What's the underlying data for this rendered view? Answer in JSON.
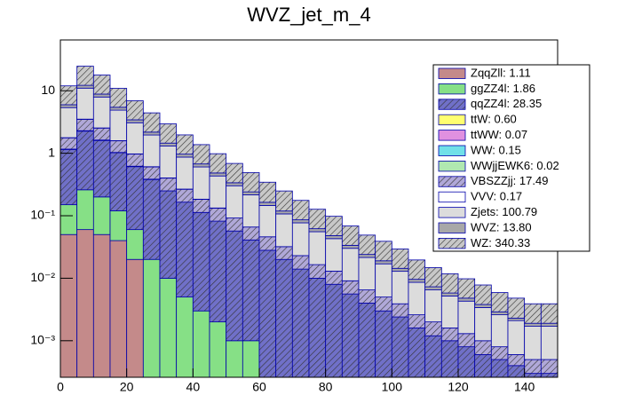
{
  "chart_data": {
    "type": "stacked_histogram",
    "title": "WVZ_jet_m_4",
    "log_y": true,
    "xlim": [
      0,
      150
    ],
    "xticks": [
      0,
      20,
      40,
      60,
      80,
      100,
      120,
      140
    ],
    "ylim": [
      0.00026,
      65
    ],
    "yticks": [
      {
        "value": 0.001,
        "label": "10⁻³"
      },
      {
        "value": 0.01,
        "label": "10⁻²"
      },
      {
        "value": 0.1,
        "label": "10⁻¹"
      },
      1,
      10
    ],
    "bins": [
      0,
      5,
      10,
      15,
      20,
      25,
      30,
      35,
      40,
      45,
      50,
      55,
      60,
      65,
      70,
      75,
      80,
      85,
      90,
      95,
      100,
      105,
      110,
      115,
      120,
      125,
      130,
      135,
      140,
      145,
      150
    ],
    "series": [
      {
        "name": "ZqqZll: 1.11",
        "color": "#c48a8a",
        "hatch": false,
        "values": [
          0.05,
          0.06,
          0.05,
          0.04,
          0.02,
          0,
          0,
          0,
          0,
          0,
          0,
          0,
          0,
          0,
          0,
          0,
          0,
          0,
          0,
          0,
          0,
          0,
          0,
          0,
          0,
          0,
          0,
          0,
          0,
          0
        ]
      },
      {
        "name": "ggZZ4l: 1.86",
        "color": "#86e086",
        "hatch": false,
        "values": [
          0.1,
          0.2,
          0.15,
          0.08,
          0.04,
          0.02,
          0.01,
          0.005,
          0.003,
          0.002,
          0.001,
          0.001,
          0,
          0,
          0,
          0,
          0,
          0,
          0,
          0,
          0,
          0,
          0,
          0,
          0,
          0,
          0,
          0,
          0,
          0
        ]
      },
      {
        "name": "qqZZ4l: 28.35",
        "color": "#7070c8",
        "hatch": true,
        "values": [
          1.0,
          2.0,
          1.4,
          0.9,
          0.55,
          0.36,
          0.24,
          0.16,
          0.11,
          0.08,
          0.056,
          0.04,
          0.028,
          0.02,
          0.014,
          0.01,
          0.008,
          0.0056,
          0.004,
          0.003,
          0.0024,
          0.0016,
          0.0012,
          0.001,
          0.0008,
          0.0006,
          0.0005,
          0.0004,
          0.0003,
          0.0003
        ]
      },
      {
        "name": "ttW: 0.60",
        "color": "#ffff70",
        "hatch": false,
        "values": [
          0.01,
          0.02,
          0.02,
          0.01,
          0.01,
          0.005,
          0,
          0,
          0,
          0,
          0,
          0,
          0,
          0,
          0,
          0,
          0,
          0,
          0,
          0,
          0,
          0,
          0,
          0,
          0,
          0,
          0,
          0,
          0,
          0
        ]
      },
      {
        "name": "ttWW: 0.07",
        "color": "#e090e0",
        "hatch": false,
        "values": [
          0,
          0.002,
          0.001,
          0,
          0,
          0,
          0,
          0,
          0,
          0,
          0,
          0,
          0,
          0,
          0,
          0,
          0,
          0,
          0,
          0,
          0,
          0,
          0,
          0,
          0,
          0,
          0,
          0,
          0,
          0
        ]
      },
      {
        "name": "WW: 0.15",
        "color": "#70e0e8",
        "hatch": false,
        "values": [
          0.005,
          0.01,
          0.005,
          0,
          0,
          0,
          0,
          0,
          0,
          0,
          0,
          0,
          0,
          0,
          0,
          0,
          0,
          0,
          0,
          0,
          0,
          0,
          0,
          0,
          0,
          0,
          0,
          0,
          0,
          0
        ]
      },
      {
        "name": "WWjjEWK6: 0.02",
        "color": "#b0e8b0",
        "hatch": false,
        "values": [
          0,
          0.001,
          0.001,
          0,
          0,
          0,
          0,
          0,
          0,
          0,
          0,
          0,
          0,
          0,
          0,
          0,
          0,
          0,
          0,
          0,
          0,
          0,
          0,
          0,
          0,
          0,
          0,
          0,
          0,
          0
        ]
      },
      {
        "name": "VBSZZjj: 17.49",
        "color": "#b0a8d8",
        "hatch": true,
        "values": [
          0.6,
          1.2,
          0.9,
          0.55,
          0.35,
          0.22,
          0.15,
          0.1,
          0.07,
          0.05,
          0.035,
          0.025,
          0.018,
          0.012,
          0.009,
          0.0065,
          0.005,
          0.0035,
          0.0025,
          0.002,
          0.0015,
          0.001,
          0.0008,
          0.0006,
          0.0005,
          0.0004,
          0.0003,
          0.0002,
          0.0002,
          0.0002
        ]
      },
      {
        "name": "VVV: 0.17",
        "color": "#ffffff",
        "hatch": false,
        "values": [
          0.01,
          0.02,
          0.015,
          0.01,
          0.006,
          0.004,
          0.003,
          0.002,
          0.001,
          0.001,
          0,
          0,
          0,
          0,
          0,
          0,
          0,
          0,
          0,
          0,
          0,
          0,
          0,
          0,
          0,
          0,
          0,
          0,
          0,
          0
        ]
      },
      {
        "name": "Zjets: 100.79",
        "color": "#dcdcdc",
        "hatch": false,
        "values": [
          3.6,
          7.5,
          5.4,
          3.3,
          2.1,
          1.35,
          0.9,
          0.6,
          0.42,
          0.3,
          0.21,
          0.15,
          0.1,
          0.075,
          0.054,
          0.039,
          0.03,
          0.021,
          0.015,
          0.012,
          0.009,
          0.006,
          0.0045,
          0.0036,
          0.003,
          0.0024,
          0.0018,
          0.0015,
          0.0012,
          0.0012
        ]
      },
      {
        "name": "WVZ: 13.80",
        "color": "#a8a8a8",
        "hatch": false,
        "values": [
          0.6,
          1.2,
          0.9,
          0.55,
          0.35,
          0.22,
          0.15,
          0.1,
          0.07,
          0.05,
          0.035,
          0.025,
          0.018,
          0.012,
          0.009,
          0.0065,
          0.005,
          0.0035,
          0.0025,
          0.002,
          0.0015,
          0.001,
          0.0008,
          0.0006,
          0.0005,
          0.0004,
          0.0003,
          0.0002,
          0.0002,
          0.0002
        ]
      },
      {
        "name": "WZ: 340.33",
        "color": "#c8c8c8",
        "hatch": true,
        "values": [
          6,
          12.5,
          9,
          5.5,
          3.5,
          2.25,
          1.5,
          1,
          0.7,
          0.5,
          0.35,
          0.25,
          0.18,
          0.13,
          0.09,
          0.065,
          0.05,
          0.035,
          0.025,
          0.02,
          0.015,
          0.01,
          0.0075,
          0.006,
          0.005,
          0.004,
          0.003,
          0.0025,
          0.002,
          0.002
        ]
      }
    ]
  }
}
